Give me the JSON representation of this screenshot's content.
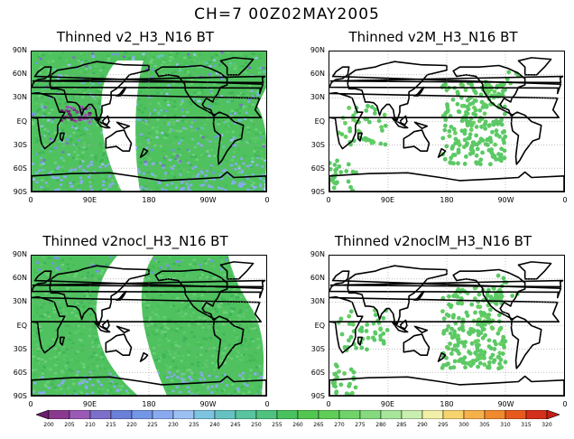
{
  "main_title": "CH=7   00Z02MAY2005",
  "lat_ticks": [
    "90N",
    "60N",
    "30N",
    "EQ",
    "30S",
    "60S",
    "90S"
  ],
  "lon_ticks": [
    "0",
    "90E",
    "180",
    "90W",
    "0"
  ],
  "panels": [
    {
      "title": "Thinned v2_H3_N16 BT",
      "type": "swath_full"
    },
    {
      "title": "Thinned v2M_H3_N16 BT",
      "type": "sparse"
    },
    {
      "title": "Thinned v2nocl_H3_N16 BT",
      "type": "swath_clear"
    },
    {
      "title": "Thinned v2noclM_H3_N16 BT",
      "type": "sparse"
    }
  ],
  "colorbar": {
    "levels": [
      "200",
      "205",
      "210",
      "215",
      "220",
      "225",
      "230",
      "235",
      "240",
      "245",
      "250",
      "255",
      "260",
      "265",
      "270",
      "275",
      "280",
      "285",
      "290",
      "295",
      "300",
      "305",
      "310",
      "315",
      "320"
    ],
    "colors": [
      "#6b1e6e",
      "#8a3a8e",
      "#9b59b6",
      "#7b6fc9",
      "#6a7fd8",
      "#7396e6",
      "#8aaaf0",
      "#9cc0f2",
      "#7cc4e0",
      "#66c2c0",
      "#5ac3a0",
      "#50c27f",
      "#49c15e",
      "#52c750",
      "#5fcd58",
      "#6fd36a",
      "#84da7d",
      "#a6e59a",
      "#c8eeb0",
      "#f2f0a8",
      "#f6d36e",
      "#f7b14a",
      "#f08a2e",
      "#e75a1e",
      "#d32f1a",
      "#c41e12"
    ]
  }
}
